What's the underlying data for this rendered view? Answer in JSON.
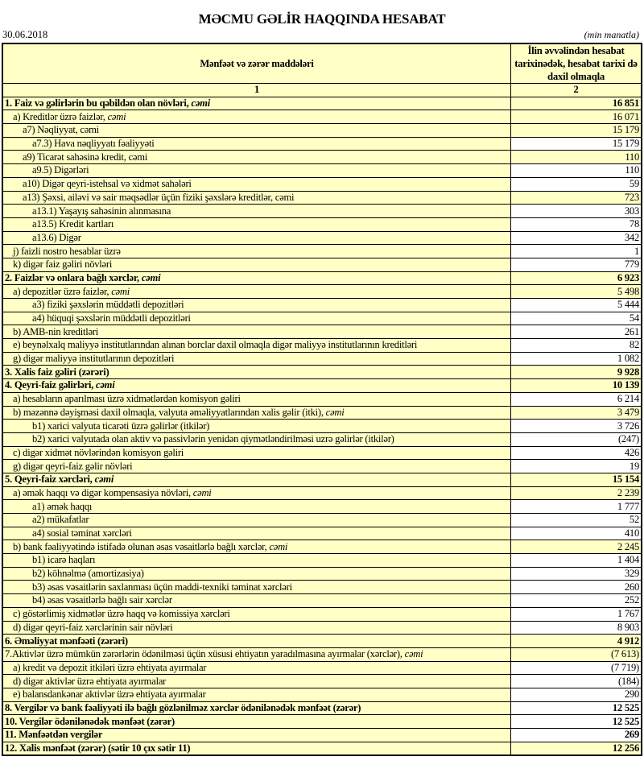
{
  "title": "MƏCMU GƏLİR HAQQINDA HESABAT",
  "date": "30.06.2018",
  "unit": "(min manatla)",
  "colors": {
    "highlight": "#ffffc6",
    "border": "#000000"
  },
  "table": {
    "headers": [
      "Mənfəət və zərər maddələri",
      "İlin əvvəlindən hesabat tarixinədək, hesabat tarixi də daxil olmaqla"
    ],
    "column_numbers": [
      "1",
      "2"
    ],
    "rows": [
      {
        "label": "1. Faiz və gəlirlərin bu qəbildən olan növləri, ",
        "em": "cəmi",
        "value": "16 851",
        "level": 0,
        "bold": true,
        "hl": true
      },
      {
        "label": "a) Kreditlər üzrə faizlər, ",
        "em": "cəmi",
        "value": "16 071",
        "level": 1,
        "bold": false,
        "hl": true
      },
      {
        "label": "a7) Nəqliyyat, cəmi",
        "em": "",
        "value": "15 179",
        "level": 2,
        "bold": false,
        "hl": true
      },
      {
        "label": "a7.3) Hava nəqliyyatı fəaliyyəti",
        "em": "",
        "value": "15 179",
        "level": 3,
        "bold": false,
        "hl": false
      },
      {
        "label": "a9) Ticarət sahəsinə kredit, cəmi",
        "em": "",
        "value": "110",
        "level": 2,
        "bold": false,
        "hl": true
      },
      {
        "label": "a9.5) Digərləri",
        "em": "",
        "value": "110",
        "level": 3,
        "bold": false,
        "hl": false
      },
      {
        "label": "a10) Digər qeyri-istehsal və xidmət sahələri",
        "em": "",
        "value": "59",
        "level": 2,
        "bold": false,
        "hl": false
      },
      {
        "label": "a13) Şəxsi, ailəvi və sair məqsədlər üçün fiziki şəxslərə kreditlər, cəmi",
        "em": "",
        "value": "723",
        "level": 2,
        "bold": false,
        "hl": true
      },
      {
        "label": "a13.1) Yaşayış sahəsinin alınmasına",
        "em": "",
        "value": "303",
        "level": 3,
        "bold": false,
        "hl": false
      },
      {
        "label": "a13.5) Kredit kartları",
        "em": "",
        "value": "78",
        "level": 3,
        "bold": false,
        "hl": false
      },
      {
        "label": "a13.6) Digər",
        "em": "",
        "value": "342",
        "level": 3,
        "bold": false,
        "hl": false
      },
      {
        "label": "j) faizli nostro hesablar üzrə",
        "em": "",
        "value": "1",
        "level": 1,
        "bold": false,
        "hl": false
      },
      {
        "label": "k) digər faiz gəliri növləri",
        "em": "",
        "value": "779",
        "level": 1,
        "bold": false,
        "hl": false
      },
      {
        "label": "2. Faizlər və onlara bağlı xərclər, ",
        "em": "cəmi",
        "value": "6 923",
        "level": 0,
        "bold": true,
        "hl": true
      },
      {
        "label": "a) depozitlər üzrə faizlər, ",
        "em": "cəmi",
        "value": "5 498",
        "level": 1,
        "bold": false,
        "hl": true
      },
      {
        "label": "a3) fiziki şəxslərin müddətli depozitləri",
        "em": "",
        "value": "5 444",
        "level": 3,
        "bold": false,
        "hl": false
      },
      {
        "label": "a4) hüquqi şəxslərin müddətli depozitləri",
        "em": "",
        "value": "54",
        "level": 3,
        "bold": false,
        "hl": false
      },
      {
        "label": "b) AMB-nin kreditləri",
        "em": "",
        "value": "261",
        "level": 1,
        "bold": false,
        "hl": false
      },
      {
        "label": "e) beynəlxalq maliyyə institutlarından alınan borclar daxil olmaqla digər maliyyə institutlarının kreditləri",
        "em": "",
        "value": "82",
        "level": 1,
        "bold": false,
        "hl": false
      },
      {
        "label": "g) digər maliyyə institutlarının depozitləri",
        "em": "",
        "value": "1 082",
        "level": 1,
        "bold": false,
        "hl": false
      },
      {
        "label": "3. Xalis faiz gəliri (zərəri)",
        "em": "",
        "value": "9 928",
        "level": 0,
        "bold": true,
        "hl": true
      },
      {
        "label": "4. Qeyri-faiz gəlirləri, ",
        "em": "cəmi",
        "value": "10 139",
        "level": 0,
        "bold": true,
        "hl": true
      },
      {
        "label": "a) hesabların aparılması üzrə xidmətlərdən komisyon gəliri",
        "em": "",
        "value": "6 214",
        "level": 1,
        "bold": false,
        "hl": false
      },
      {
        "label": "b) məzənnə dəyişməsi daxil olmaqla, valyuta əməliyyatlarından xalis gəlir (itki), ",
        "em": "cəmi",
        "value": "3 479",
        "level": 1,
        "bold": false,
        "hl": true
      },
      {
        "label": "b1) xarici valyuta ticarəti üzrə gəlirlər (itkilər)",
        "em": "",
        "value": "3 726",
        "level": 3,
        "bold": false,
        "hl": false
      },
      {
        "label": "b2) xarici valyutada olan aktiv və passivlərin yenidən qiymətləndirilməsi uzrə gəlirlər (itkilər)",
        "em": "",
        "value": "(247)",
        "level": 3,
        "bold": false,
        "hl": false
      },
      {
        "label": "c) digər xidmət növlərindən komisyon gəliri",
        "em": "",
        "value": "426",
        "level": 1,
        "bold": false,
        "hl": false
      },
      {
        "label": "g) digər qeyri-faiz gəlir növləri",
        "em": "",
        "value": "19",
        "level": 1,
        "bold": false,
        "hl": false
      },
      {
        "label": "5. Qeyri-faiz xərcləri, ",
        "em": "cəmi",
        "value": "15 154",
        "level": 0,
        "bold": true,
        "hl": true
      },
      {
        "label": "a) əmək haqqı və digər kompensasiya növləri, ",
        "em": "cəmi",
        "value": "2 239",
        "level": 1,
        "bold": false,
        "hl": true
      },
      {
        "label": "a1) əmək haqqı",
        "em": "",
        "value": "1 777",
        "level": 3,
        "bold": false,
        "hl": false
      },
      {
        "label": "a2) mükafatlar",
        "em": "",
        "value": "52",
        "level": 3,
        "bold": false,
        "hl": false
      },
      {
        "label": "a4) sosial təminat xərcləri",
        "em": "",
        "value": "410",
        "level": 3,
        "bold": false,
        "hl": false
      },
      {
        "label": "b) bank fəaliyyətində istifadə olunan əsas vəsaitlərlə bağlı xərclər, ",
        "em": "cəmi",
        "value": "2 245",
        "level": 1,
        "bold": false,
        "hl": true
      },
      {
        "label": "b1) icarə haqları",
        "em": "",
        "value": "1 404",
        "level": 3,
        "bold": false,
        "hl": false
      },
      {
        "label": "b2) köhnəlmə (amortizasiya)",
        "em": "",
        "value": "329",
        "level": 3,
        "bold": false,
        "hl": false
      },
      {
        "label": "b3) əsas vəsaitlərin saxlanması üçün maddi-texniki təminat xərcləri",
        "em": "",
        "value": "260",
        "level": 3,
        "bold": false,
        "hl": false
      },
      {
        "label": "b4) əsas vəsaitlərlə bağlı sair xərclər",
        "em": "",
        "value": "252",
        "level": 3,
        "bold": false,
        "hl": false
      },
      {
        "label": "c) göstərlimiş xidmətlər üzrə haqq və komissiya xərcləri",
        "em": "",
        "value": "1 767",
        "level": 1,
        "bold": false,
        "hl": false
      },
      {
        "label": "d) digər qeyri-faiz xərclərinin sair növləri",
        "em": "",
        "value": "8 903",
        "level": 1,
        "bold": false,
        "hl": false
      },
      {
        "label": "6. Əməliyyat mənfəəti (zərəri)",
        "em": "",
        "value": "4 912",
        "level": 0,
        "bold": true,
        "hl": true
      },
      {
        "label": "7.Aktivlər üzrə mümkün zərərlərin ödənilməsi üçün xüsusi ehtiyatın yaradılmasına ayırmalar (xərclər), ",
        "em": "cəmi",
        "value": "(7 613)",
        "level": 0,
        "bold": false,
        "hl": true
      },
      {
        "label": "a) kredit və depozit itkiləri üzrə ehtiyata ayırmalar",
        "em": "",
        "value": "(7 719)",
        "level": 1,
        "bold": false,
        "hl": false
      },
      {
        "label": "d) digər aktivlər üzrə ehtiyata ayırmalar",
        "em": "",
        "value": "(184)",
        "level": 1,
        "bold": false,
        "hl": false
      },
      {
        "label": "e) balansdankənar aktivlər üzrə ehtiyata ayırmalar",
        "em": "",
        "value": "290",
        "level": 1,
        "bold": false,
        "hl": false
      },
      {
        "label": "8. Vergilər və bank fəaliyyəti ilə bağlı gözlənilməz xərclər ödənilənədək mənfəət (zərər)",
        "em": "",
        "value": "12 525",
        "level": 0,
        "bold": true,
        "hl": false
      },
      {
        "label": "10. Vergilər ödənilənədək mənfəət (zərər)",
        "em": "",
        "value": "12 525",
        "level": 0,
        "bold": true,
        "hl": false
      },
      {
        "label": "11. Mənfəətdən vergilər",
        "em": "",
        "value": "269",
        "level": 0,
        "bold": true,
        "hl": false
      },
      {
        "label": "12. Xalis mənfəət (zərər) (sətir 10 çıx sətir 11)",
        "em": "",
        "value": "12 256",
        "level": 0,
        "bold": true,
        "hl": true
      }
    ]
  }
}
